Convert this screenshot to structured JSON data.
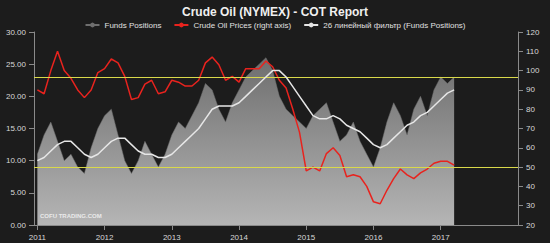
{
  "chart_data": {
    "type": "line",
    "title": "Crude Oil (NYMEX) - COT Report",
    "watermark": "COFU TRADING.COM",
    "legend": "top",
    "x": [
      2011.0,
      2011.1,
      2011.2,
      2011.3,
      2011.4,
      2011.5,
      2011.6,
      2011.7,
      2011.8,
      2011.9,
      2012.0,
      2012.1,
      2012.2,
      2012.3,
      2012.4,
      2012.5,
      2012.6,
      2012.7,
      2012.8,
      2012.9,
      2013.0,
      2013.1,
      2013.2,
      2013.3,
      2013.4,
      2013.5,
      2013.6,
      2013.7,
      2013.8,
      2013.9,
      2014.0,
      2014.1,
      2014.2,
      2014.3,
      2014.4,
      2014.5,
      2014.6,
      2014.7,
      2014.8,
      2014.9,
      2015.0,
      2015.1,
      2015.2,
      2015.3,
      2015.4,
      2015.5,
      2015.6,
      2015.7,
      2015.8,
      2015.9,
      2016.0,
      2016.1,
      2016.2,
      2016.3,
      2016.4,
      2016.5,
      2016.6,
      2016.7,
      2016.8,
      2016.9,
      2017.0,
      2017.1,
      2017.2
    ],
    "xlim": [
      2010.95,
      2018.15
    ],
    "xticks": [
      2011,
      2012,
      2013,
      2014,
      2015,
      2016,
      2017
    ],
    "ylim": [
      0,
      30
    ],
    "yticks": [
      {
        "value": 0,
        "label": "0.00"
      },
      {
        "value": 5,
        "label": "5.00"
      },
      {
        "value": 10,
        "label": "10.00"
      },
      {
        "value": 15,
        "label": "15.00"
      },
      {
        "value": 20,
        "label": "20.00"
      },
      {
        "value": 25,
        "label": "25.00"
      },
      {
        "value": 30,
        "label": "30.00"
      }
    ],
    "y2lim": [
      20,
      120
    ],
    "y2ticks": [
      20,
      30,
      40,
      50,
      60,
      70,
      80,
      90,
      100,
      110,
      120
    ],
    "hlines": [
      22.9,
      9.0
    ],
    "series": [
      {
        "name": "Funds Positions",
        "type": "area",
        "color": "#6e6e6e",
        "values": [
          11,
          14,
          16,
          13,
          10,
          11,
          9,
          8,
          12,
          15,
          17,
          18,
          14,
          10,
          8,
          10,
          13,
          11,
          9,
          11,
          14,
          16,
          15,
          17,
          19,
          22,
          21,
          18,
          16,
          19,
          21,
          23,
          24,
          25,
          26,
          24,
          20,
          18,
          17,
          16,
          15,
          17,
          18,
          19,
          16,
          13,
          14,
          16,
          13,
          11,
          9,
          12,
          16,
          19,
          17,
          14,
          18,
          20,
          17,
          21,
          23,
          22,
          23
        ]
      },
      {
        "name": "Crude Oil Prices (right axis)",
        "type": "line",
        "color": "#e8231e",
        "axis": "y2",
        "values": [
          90,
          88,
          100,
          110,
          100,
          96,
          90,
          86,
          90,
          99,
          101,
          106,
          104,
          97,
          85,
          86,
          93,
          95,
          88,
          89,
          95,
          94,
          92,
          92,
          95,
          104,
          107,
          103,
          95,
          97,
          94,
          101,
          101,
          101,
          105,
          102,
          95,
          91,
          80,
          68,
          48,
          50,
          48,
          57,
          60,
          56,
          45,
          46,
          45,
          40,
          32,
          31,
          38,
          44,
          49,
          46,
          44,
          47,
          49,
          52,
          53,
          53,
          51
        ]
      },
      {
        "name": "26 линейный фильтр (Funds Positions)",
        "type": "line",
        "color": "#e6e6e6",
        "values": [
          10,
          10.5,
          11.5,
          12.5,
          13,
          13,
          12,
          11,
          10.5,
          11,
          12,
          13,
          13.5,
          13.5,
          12.5,
          11.5,
          11,
          11,
          10.5,
          10.5,
          11,
          12,
          13,
          14,
          15,
          16.5,
          18,
          18.5,
          18.5,
          18.5,
          19,
          20,
          21,
          22,
          23,
          24,
          24,
          23,
          21.5,
          20,
          18.5,
          17,
          16.5,
          16.5,
          17,
          16.5,
          15.5,
          15,
          14.5,
          13.5,
          12.5,
          12,
          12.5,
          13.5,
          14.5,
          15.5,
          16,
          17,
          17.5,
          18.5,
          19.5,
          20.5,
          21
        ]
      }
    ]
  }
}
